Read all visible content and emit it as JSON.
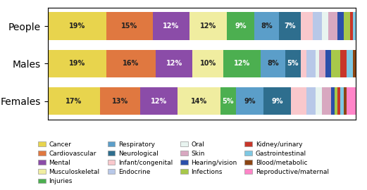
{
  "chart_data": {
    "type": "bar",
    "orientation": "horizontal",
    "stacked": true,
    "categories": [
      "People",
      "Males",
      "Females"
    ],
    "xlim": [
      0,
      100
    ],
    "xticks": [],
    "tick_labels": "y",
    "grid": false,
    "legend": "lower center",
    "series": [
      {
        "name": "Cancer",
        "color": "#E8D44D",
        "values": [
          19,
          19,
          17
        ],
        "value_labels": [
          "19%",
          "19%",
          "17%"
        ]
      },
      {
        "name": "Cardiovascular",
        "color": "#E07840",
        "values": [
          15,
          16,
          13
        ],
        "value_labels": [
          "15%",
          "16%",
          "13%"
        ]
      },
      {
        "name": "Mental",
        "color": "#8B4CA8",
        "values": [
          12,
          12,
          12
        ],
        "value_labels": [
          "12%",
          "12%",
          "12%"
        ]
      },
      {
        "name": "Musculoskeletal",
        "color": "#F0EDA0",
        "values": [
          12,
          10,
          14
        ],
        "value_labels": [
          "12%",
          "10%",
          "14%"
        ]
      },
      {
        "name": "Injuries",
        "color": "#4CAF50",
        "values": [
          9,
          12,
          5
        ],
        "value_labels": [
          "9%",
          "12%",
          "5%"
        ]
      },
      {
        "name": "Respiratory",
        "color": "#5B9EC9",
        "values": [
          8,
          8,
          9
        ],
        "value_labels": [
          "8%",
          "8%",
          "9%"
        ]
      },
      {
        "name": "Neurological",
        "color": "#2E6E8E",
        "values": [
          7,
          5,
          9
        ],
        "value_labels": [
          "7%",
          "5%",
          "9%"
        ]
      },
      {
        "name": "Infant/congenital",
        "color": "#F9C8CC",
        "values": [
          4,
          2,
          5
        ]
      },
      {
        "name": "Endocrine",
        "color": "#B8C8E8",
        "values": [
          3,
          3,
          3
        ]
      },
      {
        "name": "Oral",
        "color": "#E8F4F0",
        "values": [
          2,
          1,
          2
        ]
      },
      {
        "name": "Skin",
        "color": "#D8A8C0",
        "values": [
          3,
          2,
          3
        ]
      },
      {
        "name": "Hearing/vision",
        "color": "#2B4FAA",
        "values": [
          2,
          2,
          1
        ]
      },
      {
        "name": "Infections",
        "color": "#A8C84A",
        "values": [
          2,
          3,
          1
        ]
      },
      {
        "name": "Kidney/urinary",
        "color": "#C8362A",
        "values": [
          1,
          2,
          1
        ]
      },
      {
        "name": "Gastrointestinal",
        "color": "#7EC8E3",
        "values": [
          1,
          2,
          1
        ]
      },
      {
        "name": "Blood/metabolic",
        "color": "#8B4513",
        "values": [
          0,
          1,
          1
        ]
      },
      {
        "name": "Reproductive/maternal",
        "color": "#FF85C8",
        "values": [
          0,
          0,
          3
        ]
      }
    ]
  }
}
